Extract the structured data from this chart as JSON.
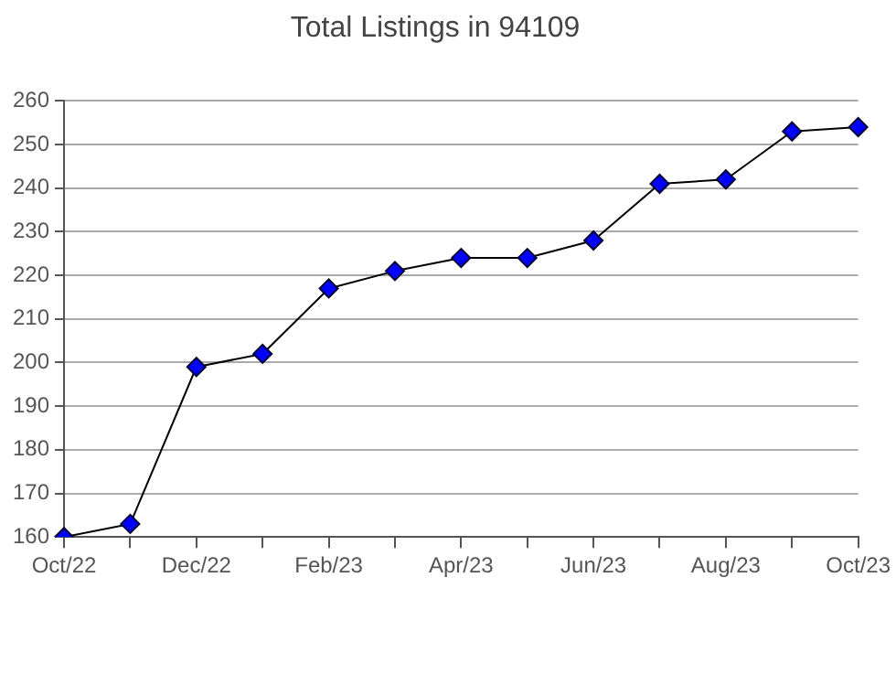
{
  "chart_data": {
    "type": "line",
    "title": "Total Listings in 94109",
    "categories": [
      "Oct/22",
      null,
      "Dec/22",
      null,
      "Feb/23",
      null,
      "Apr/23",
      null,
      "Jun/23",
      null,
      "Aug/23",
      null,
      "Oct/23"
    ],
    "series": [
      {
        "color": "#0000ff",
        "values": [
          160,
          163,
          199,
          202,
          217,
          221,
          224,
          224,
          228,
          241,
          242,
          253,
          254
        ]
      }
    ],
    "ylim": [
      160,
      260
    ],
    "yticks": [
      160,
      170,
      180,
      190,
      200,
      210,
      220,
      230,
      240,
      250,
      260
    ],
    "grid": "y",
    "legend": false,
    "marker": "diamond",
    "line_style": "solid"
  }
}
